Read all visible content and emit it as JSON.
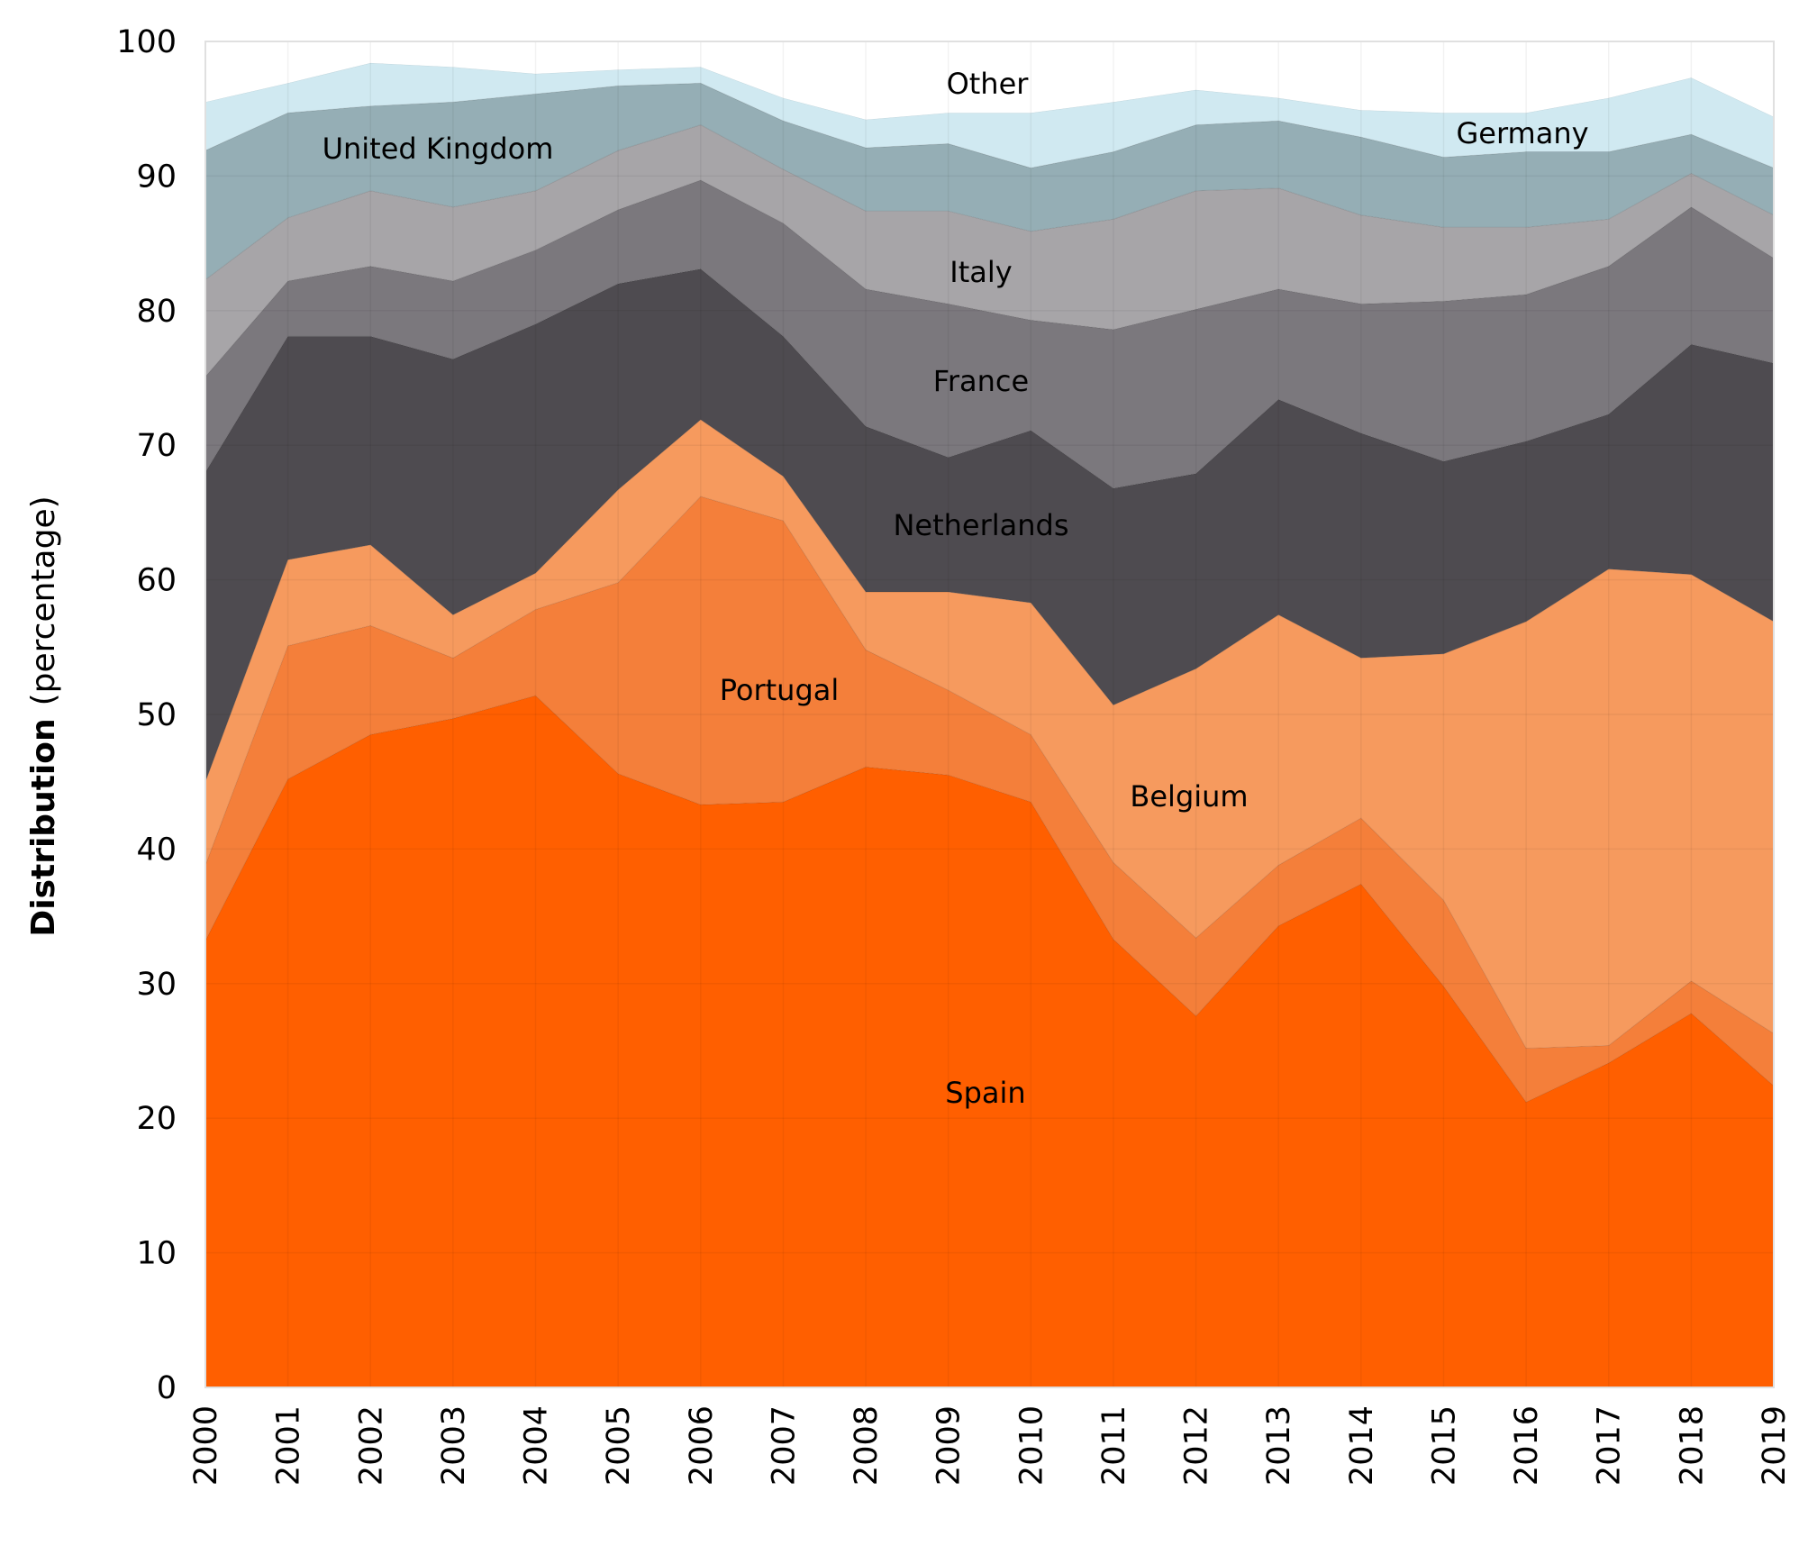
{
  "chart_data": {
    "type": "area",
    "stacked": true,
    "title": "",
    "xlabel": "",
    "ylabel_bold": "Distribution",
    "ylabel_rest": "(percentage)",
    "ylim": [
      0,
      100
    ],
    "yticks": [
      0,
      10,
      20,
      30,
      40,
      50,
      60,
      70,
      80,
      90,
      100
    ],
    "grid": true,
    "x": [
      "2000",
      "2001",
      "2002",
      "2003",
      "2004",
      "2005",
      "2006",
      "2007",
      "2008",
      "2009",
      "2010",
      "2011",
      "2012",
      "2013",
      "2014",
      "2015",
      "2016",
      "2017",
      "2018",
      "2019"
    ],
    "series": [
      {
        "name": "Spain",
        "color": "#ff5f00",
        "label_color": "#000000",
        "values": [
          33.2,
          45.2,
          48.5,
          49.7,
          51.4,
          45.6,
          43.3,
          43.5,
          46.1,
          45.5,
          43.5,
          33.3,
          27.6,
          34.3,
          37.4,
          29.8,
          21.2,
          24.1,
          27.8,
          22.4
        ]
      },
      {
        "name": "Portugal",
        "color": "#f47f3a",
        "label_color": "#000000",
        "values": [
          5.6,
          9.9,
          8.1,
          4.5,
          6.4,
          14.2,
          22.9,
          20.9,
          8.7,
          6.3,
          5.0,
          5.7,
          5.8,
          4.5,
          4.9,
          6.4,
          4.0,
          1.3,
          2.4,
          3.9
        ]
      },
      {
        "name": "Belgium",
        "color": "#f69a5e",
        "label_color": "#000000",
        "values": [
          6.2,
          6.4,
          6.0,
          3.2,
          2.7,
          6.9,
          5.7,
          3.3,
          4.3,
          7.3,
          9.8,
          11.7,
          20.0,
          18.6,
          11.9,
          18.3,
          31.7,
          35.4,
          30.2,
          30.6
        ]
      },
      {
        "name": "Netherlands",
        "color": "#4e4b50",
        "label_color": "#ffffff",
        "values": [
          23.0,
          16.6,
          15.5,
          19.0,
          18.5,
          15.3,
          11.2,
          10.4,
          12.3,
          10.0,
          12.8,
          16.1,
          14.5,
          16.0,
          16.7,
          14.3,
          13.4,
          11.5,
          17.1,
          19.2
        ]
      },
      {
        "name": "France",
        "color": "#7b787d",
        "label_color": "#ffffff",
        "values": [
          7.1,
          4.1,
          5.2,
          5.8,
          5.5,
          5.5,
          6.6,
          8.4,
          10.2,
          11.4,
          8.2,
          11.8,
          12.2,
          8.2,
          9.6,
          11.9,
          10.9,
          11.0,
          10.2,
          7.8
        ]
      },
      {
        "name": "Italy",
        "color": "#a7a5a8",
        "label_color": "#000000",
        "values": [
          7.2,
          4.7,
          5.6,
          5.5,
          4.4,
          4.4,
          4.1,
          4.0,
          5.8,
          6.9,
          6.6,
          8.2,
          8.8,
          7.5,
          6.6,
          5.5,
          5.0,
          3.5,
          2.5,
          3.2
        ]
      },
      {
        "name": "United Kingdom",
        "color": "#95aeb5",
        "label_color": "#000000",
        "values": [
          9.6,
          7.8,
          6.3,
          7.8,
          7.2,
          4.8,
          3.1,
          3.6,
          4.7,
          5.0,
          4.7,
          5.0,
          4.9,
          5.0,
          5.8,
          5.2,
          5.6,
          5.0,
          2.9,
          3.5
        ]
      },
      {
        "name": "Germany",
        "color": "#d0e9f1",
        "label_color": "#000000",
        "values": [
          3.6,
          2.2,
          3.2,
          2.6,
          1.5,
          1.2,
          1.2,
          1.7,
          2.1,
          2.3,
          4.1,
          3.7,
          2.6,
          1.7,
          2.0,
          3.3,
          2.9,
          4.0,
          4.2,
          3.8
        ]
      },
      {
        "name": "Other",
        "color": "#ffffff",
        "label_color": "#000000",
        "values": [
          4.5,
          3.1,
          1.6,
          1.9,
          2.4,
          2.1,
          1.9,
          4.2,
          5.8,
          5.3,
          5.3,
          4.5,
          3.6,
          4.2,
          5.1,
          5.3,
          5.3,
          4.2,
          2.7,
          5.6
        ]
      }
    ]
  }
}
